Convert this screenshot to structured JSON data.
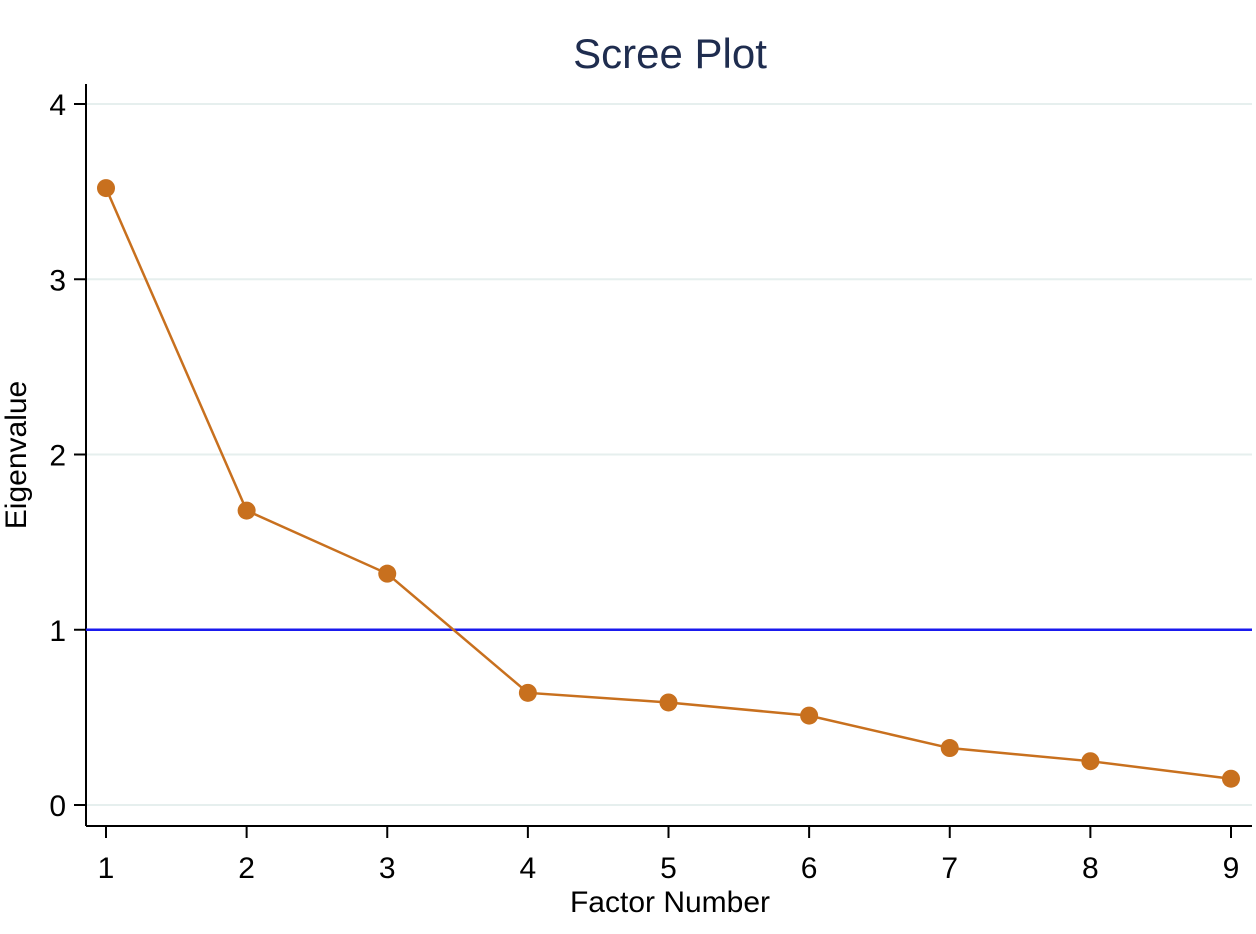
{
  "chart_data": {
    "type": "line",
    "title": "Scree Plot",
    "xlabel": "Factor Number",
    "ylabel": "Eigenvalue",
    "x": [
      1,
      2,
      3,
      4,
      5,
      6,
      7,
      8,
      9
    ],
    "series": [
      {
        "values": [
          3.52,
          1.68,
          1.32,
          0.64,
          0.585,
          0.51,
          0.325,
          0.25,
          0.15
        ]
      }
    ],
    "reference_line": {
      "y": 1
    },
    "xlim": [
      1,
      9
    ],
    "ylim": [
      0,
      4
    ],
    "xticks": [
      "1",
      "2",
      "3",
      "4",
      "5",
      "6",
      "7",
      "8",
      "9"
    ],
    "yticks": [
      "0",
      "1",
      "2",
      "3",
      "4"
    ],
    "grid": "horizontal",
    "colors": {
      "series": "#c8701e",
      "reference": "#1a1aee",
      "grid": "#e6efee",
      "title": "#1f2d4f"
    }
  }
}
